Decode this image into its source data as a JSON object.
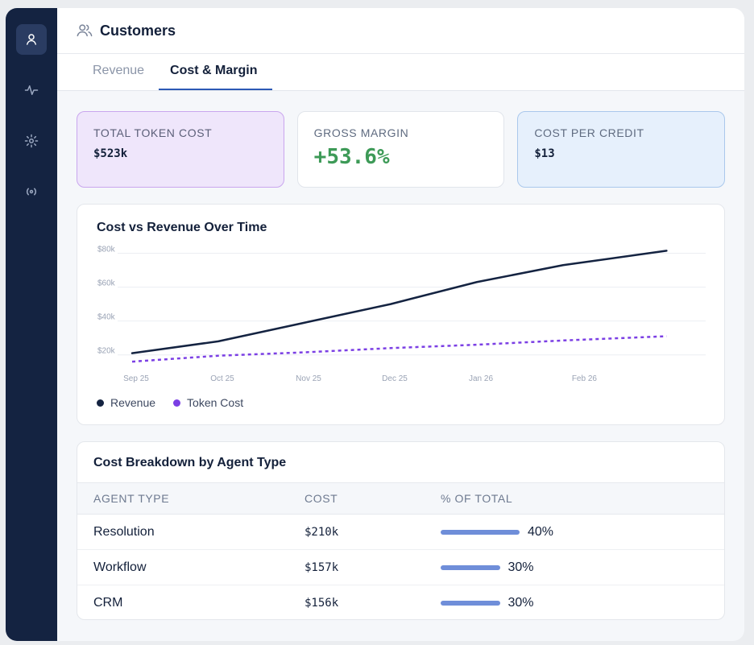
{
  "header": {
    "title": "Customers"
  },
  "tabs": [
    {
      "label": "Revenue"
    },
    {
      "label": "Cost & Margin"
    }
  ],
  "cards": {
    "total_token_cost": {
      "label": "TOTAL TOKEN COST",
      "value": "$523k"
    },
    "gross_margin": {
      "label": "GROSS MARGIN",
      "value": "+53.6%"
    },
    "cost_per_credit": {
      "label": "COST PER CREDIT",
      "value": "$13"
    }
  },
  "chart_data": {
    "type": "line",
    "title": "Cost vs Revenue Over Time",
    "categories": [
      "Sep 25",
      "Oct 25",
      "Nov 25",
      "Dec 25",
      "Jan 26",
      "Feb 26"
    ],
    "x": [
      0,
      1,
      2,
      3,
      4,
      5,
      6.2
    ],
    "yticks": [
      "$20k",
      "$40k",
      "$60k",
      "$80k"
    ],
    "ylim": [
      17000,
      85000
    ],
    "series": [
      {
        "name": "Revenue",
        "color": "#142341",
        "style": "solid",
        "values": [
          21000,
          28000,
          39000,
          50000,
          63000,
          73000,
          81500
        ]
      },
      {
        "name": "Token Cost",
        "color": "#7b3fe4",
        "style": "dashed",
        "values": [
          16000,
          19500,
          21500,
          24000,
          26000,
          28500,
          31000
        ]
      }
    ]
  },
  "breakdown": {
    "title": "Cost Breakdown by Agent Type",
    "headers": {
      "agent": "AGENT TYPE",
      "cost": "COST",
      "pct": "% OF TOTAL"
    },
    "rows": [
      {
        "agent": "Resolution",
        "cost": "$210k",
        "pct_label": "40%",
        "pct": 40
      },
      {
        "agent": "Workflow",
        "cost": "$157k",
        "pct_label": "30%",
        "pct": 30
      },
      {
        "agent": "CRM",
        "cost": "$156k",
        "pct_label": "30%",
        "pct": 30
      }
    ]
  },
  "colors": {
    "sidebar": "#142341",
    "accent": "#2c59b5",
    "positive": "#3d9a57",
    "bar": "#6f8ed9"
  },
  "sidebar": {
    "icons": [
      "user-icon",
      "activity-icon",
      "gear-icon",
      "broadcast-icon"
    ]
  }
}
